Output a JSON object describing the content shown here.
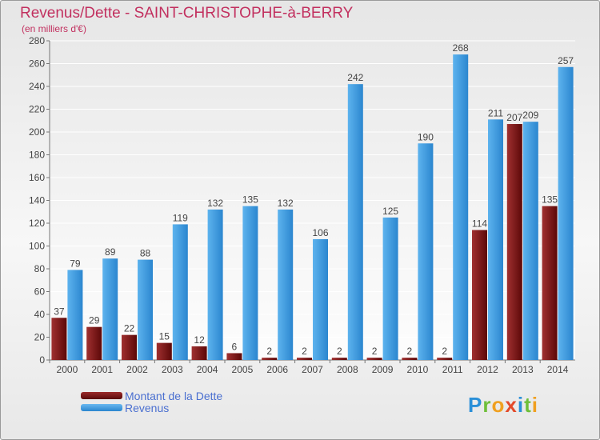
{
  "chart_data": {
    "type": "bar",
    "title": "Revenus/Dette - SAINT-CHRISTOPHE-à-BERRY",
    "subtitle": "(en milliers d'€)",
    "categories": [
      "2000",
      "2001",
      "2002",
      "2003",
      "2004",
      "2005",
      "2006",
      "2007",
      "2008",
      "2009",
      "2010",
      "2011",
      "2012",
      "2013",
      "2014"
    ],
    "series": [
      {
        "name": "Montant de la Dette",
        "color": "#7a1414",
        "values": [
          37,
          29,
          22,
          15,
          12,
          6,
          2,
          2,
          2,
          2,
          2,
          2,
          114,
          207,
          135
        ]
      },
      {
        "name": "Revenus",
        "color": "#3d9ae0",
        "values": [
          79,
          89,
          88,
          119,
          132,
          135,
          132,
          106,
          242,
          125,
          190,
          268,
          211,
          209,
          257
        ]
      }
    ],
    "ylim": [
      0,
      280
    ],
    "yticks": [
      0,
      20,
      40,
      60,
      80,
      100,
      120,
      140,
      160,
      180,
      200,
      220,
      240,
      260,
      280
    ],
    "grid": true,
    "legend_position": "bottom-left"
  },
  "logo": {
    "text": "Proxiti"
  }
}
